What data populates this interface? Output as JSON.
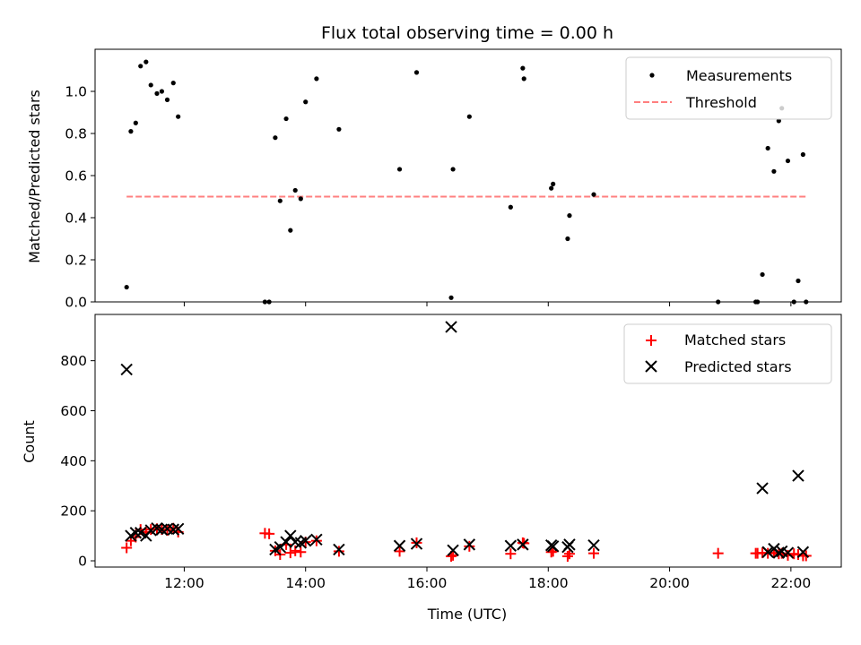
{
  "title": "Flux total observing time = 0.00 h",
  "chart_data": [
    {
      "type": "scatter",
      "ylabel": "Matched/Predicted stars",
      "xlim": [
        10.53,
        22.83
      ],
      "ylim": [
        0.0,
        1.2
      ],
      "yticks": [
        0.0,
        0.2,
        0.4,
        0.6,
        0.8,
        1.0
      ],
      "xticks": [
        12,
        14,
        16,
        18,
        20,
        22
      ],
      "legend": {
        "position": "top-right",
        "entries": [
          "Measurements",
          "Threshold"
        ]
      },
      "series": [
        {
          "name": "Measurements",
          "marker": "dot",
          "color": "#000000",
          "points": [
            [
              11.05,
              0.07
            ],
            [
              11.12,
              0.81
            ],
            [
              11.2,
              0.85
            ],
            [
              11.28,
              1.12
            ],
            [
              11.37,
              1.14
            ],
            [
              11.45,
              1.03
            ],
            [
              11.55,
              0.99
            ],
            [
              11.63,
              1.0
            ],
            [
              11.72,
              0.96
            ],
            [
              11.82,
              1.04
            ],
            [
              11.9,
              0.88
            ],
            [
              13.33,
              0.0
            ],
            [
              13.4,
              0.0
            ],
            [
              13.5,
              0.78
            ],
            [
              13.58,
              0.48
            ],
            [
              13.68,
              0.87
            ],
            [
              13.75,
              0.34
            ],
            [
              13.83,
              0.53
            ],
            [
              13.92,
              0.49
            ],
            [
              14.0,
              0.95
            ],
            [
              14.18,
              1.06
            ],
            [
              14.55,
              0.82
            ],
            [
              15.55,
              0.63
            ],
            [
              15.83,
              1.09
            ],
            [
              16.4,
              0.02
            ],
            [
              16.43,
              0.63
            ],
            [
              16.7,
              0.88
            ],
            [
              17.38,
              0.45
            ],
            [
              17.58,
              1.11
            ],
            [
              17.6,
              1.06
            ],
            [
              18.05,
              0.54
            ],
            [
              18.08,
              0.56
            ],
            [
              18.32,
              0.3
            ],
            [
              18.35,
              0.41
            ],
            [
              18.75,
              0.51
            ],
            [
              20.8,
              0.0
            ],
            [
              21.42,
              0.0
            ],
            [
              21.45,
              0.0
            ],
            [
              21.53,
              0.13
            ],
            [
              21.62,
              0.73
            ],
            [
              21.72,
              0.62
            ],
            [
              21.8,
              0.86
            ],
            [
              21.85,
              0.92
            ],
            [
              21.95,
              0.67
            ],
            [
              22.05,
              0.0
            ],
            [
              22.12,
              0.1
            ],
            [
              22.2,
              0.7
            ],
            [
              22.25,
              0.0
            ]
          ]
        },
        {
          "name": "Threshold",
          "style": "dashed",
          "color": "#ff7f7f",
          "x": [
            11.05,
            22.25
          ],
          "y": [
            0.5,
            0.5
          ]
        }
      ]
    },
    {
      "type": "scatter",
      "xlabel": "Time (UTC)",
      "ylabel": "Count",
      "xlim": [
        10.53,
        22.83
      ],
      "ylim": [
        -25,
        985
      ],
      "yticks": [
        0,
        200,
        400,
        600,
        800
      ],
      "xticks": [
        12,
        14,
        16,
        18,
        20,
        22
      ],
      "xtick_labels": [
        "12:00",
        "14:00",
        "16:00",
        "18:00",
        "20:00",
        "22:00"
      ],
      "legend": {
        "position": "top-right",
        "entries": [
          "Matched stars",
          "Predicted stars"
        ]
      },
      "series": [
        {
          "name": "Matched stars",
          "marker": "plus",
          "color": "#ff0000",
          "points": [
            [
              11.05,
              52
            ],
            [
              11.12,
              80
            ],
            [
              11.2,
              95
            ],
            [
              11.28,
              125
            ],
            [
              11.37,
              115
            ],
            [
              11.45,
              125
            ],
            [
              11.55,
              128
            ],
            [
              11.63,
              125
            ],
            [
              11.72,
              122
            ],
            [
              11.82,
              130
            ],
            [
              11.9,
              115
            ],
            [
              13.33,
              110
            ],
            [
              13.4,
              108
            ],
            [
              13.5,
              40
            ],
            [
              13.58,
              25
            ],
            [
              13.68,
              65
            ],
            [
              13.75,
              32
            ],
            [
              13.83,
              40
            ],
            [
              13.92,
              35
            ],
            [
              14.0,
              75
            ],
            [
              14.18,
              80
            ],
            [
              14.55,
              38
            ],
            [
              15.55,
              38
            ],
            [
              15.83,
              72
            ],
            [
              16.4,
              18
            ],
            [
              16.43,
              22
            ],
            [
              16.7,
              58
            ],
            [
              17.38,
              28
            ],
            [
              17.58,
              72
            ],
            [
              17.6,
              70
            ],
            [
              18.05,
              35
            ],
            [
              18.08,
              38
            ],
            [
              18.32,
              18
            ],
            [
              18.35,
              28
            ],
            [
              18.75,
              30
            ],
            [
              20.8,
              30
            ],
            [
              21.42,
              30
            ],
            [
              21.45,
              30
            ],
            [
              21.53,
              32
            ],
            [
              21.62,
              30
            ],
            [
              21.72,
              32
            ],
            [
              21.8,
              28
            ],
            [
              21.85,
              30
            ],
            [
              21.95,
              22
            ],
            [
              22.05,
              28
            ],
            [
              22.12,
              25
            ],
            [
              22.2,
              20
            ],
            [
              22.25,
              20
            ]
          ]
        },
        {
          "name": "Predicted stars",
          "marker": "x",
          "color": "#000000",
          "points": [
            [
              11.05,
              765
            ],
            [
              11.12,
              100
            ],
            [
              11.2,
              112
            ],
            [
              11.28,
              112
            ],
            [
              11.37,
              100
            ],
            [
              11.45,
              122
            ],
            [
              11.55,
              130
            ],
            [
              11.63,
              125
            ],
            [
              11.72,
              128
            ],
            [
              11.82,
              125
            ],
            [
              11.9,
              128
            ],
            [
              13.5,
              45
            ],
            [
              13.58,
              55
            ],
            [
              13.68,
              75
            ],
            [
              13.75,
              100
            ],
            [
              13.83,
              75
            ],
            [
              13.92,
              72
            ],
            [
              14.0,
              80
            ],
            [
              14.18,
              85
            ],
            [
              14.55,
              45
            ],
            [
              15.55,
              60
            ],
            [
              15.83,
              68
            ],
            [
              16.4,
              935
            ],
            [
              16.43,
              42
            ],
            [
              16.7,
              65
            ],
            [
              17.38,
              60
            ],
            [
              17.58,
              65
            ],
            [
              18.05,
              62
            ],
            [
              18.08,
              58
            ],
            [
              18.32,
              55
            ],
            [
              18.35,
              65
            ],
            [
              18.75,
              62
            ],
            [
              21.53,
              290
            ],
            [
              21.62,
              35
            ],
            [
              21.72,
              48
            ],
            [
              21.8,
              32
            ],
            [
              21.85,
              38
            ],
            [
              21.95,
              32
            ],
            [
              22.12,
              340
            ],
            [
              22.2,
              35
            ]
          ]
        }
      ]
    }
  ]
}
